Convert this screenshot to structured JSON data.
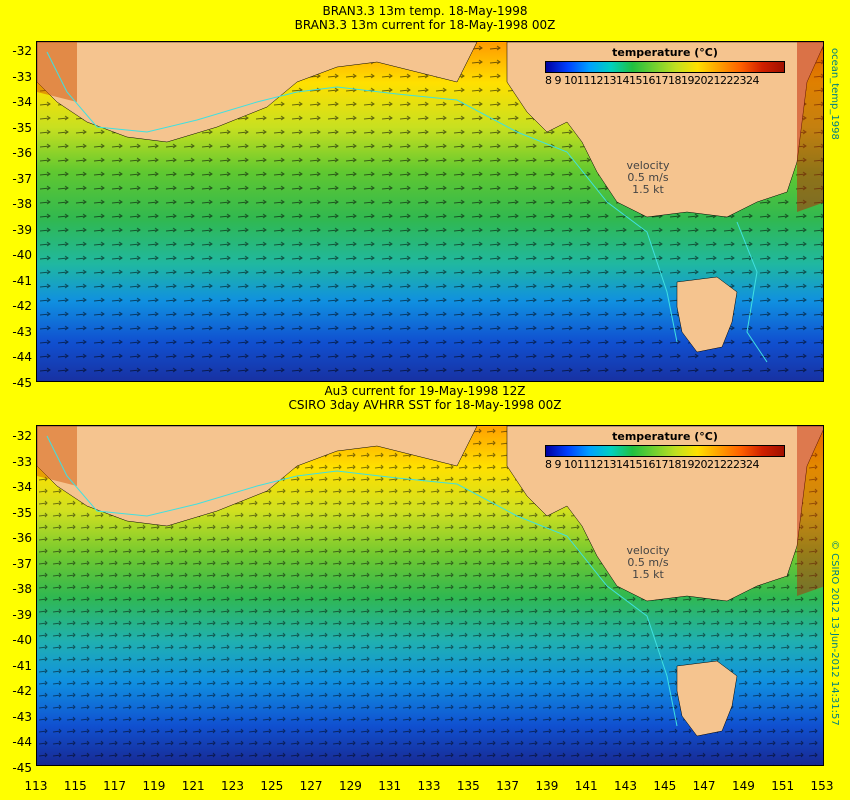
{
  "panel1": {
    "title_line1": "BRAN3.3 13m temp. 18-May-1998",
    "title_line2": "BRAN3.3 13m current for 18-May-1998 00Z"
  },
  "panel2": {
    "title_line1": "Au3 current for 19-May-1998 12Z",
    "title_line2": "CSIRO 3day AVHRR SST for 18-May-1998 00Z"
  },
  "legend": {
    "title": "temperature  (°C)",
    "ticks": "8  9 101112131415161718192021222324"
  },
  "velocity": {
    "label": "velocity",
    "scale": "0.5 m/s",
    "knots": "1.5 kt"
  },
  "side_labels": {
    "top": "ocean_temp_1998",
    "bottom": "© CSIRO 2012  13-Jun-2012 14:31:57"
  },
  "axes": {
    "lat_ticks": [
      "-32",
      "-33",
      "-34",
      "-35",
      "-36",
      "-37",
      "-38",
      "-39",
      "-40",
      "-41",
      "-42",
      "-43",
      "-44",
      "-45"
    ],
    "lon_ticks": [
      "113",
      "115",
      "117",
      "119",
      "121",
      "123",
      "125",
      "127",
      "129",
      "131",
      "133",
      "135",
      "137",
      "139",
      "141",
      "143",
      "145",
      "147",
      "149",
      "151",
      "153"
    ]
  },
  "colors": {
    "background": "#ffff00",
    "land": "#f5c48f",
    "contour": "#40e0e0"
  }
}
